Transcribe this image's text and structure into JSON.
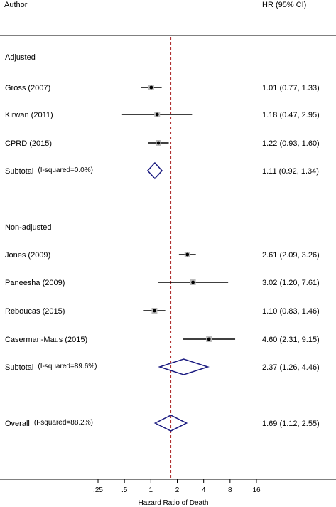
{
  "chart_data": {
    "type": "forest",
    "header_left": "Author",
    "header_right": "HR (95% CI)",
    "xlabel": "Hazard Ratio of Death",
    "x_scale": "log",
    "xlim": [
      0.25,
      16
    ],
    "ticks": [
      {
        "value": 0.25,
        "label": ".25"
      },
      {
        "value": 0.5,
        "label": ".5"
      },
      {
        "value": 1,
        "label": "1"
      },
      {
        "value": 2,
        "label": "2"
      },
      {
        "value": 4,
        "label": "4"
      },
      {
        "value": 8,
        "label": "8"
      },
      {
        "value": 16,
        "label": "16"
      }
    ],
    "reference_line": 1.69,
    "rows": [
      {
        "kind": "group",
        "label": "Adjusted"
      },
      {
        "kind": "study",
        "label": "Gross (2007)",
        "hr": 1.01,
        "lo": 0.77,
        "hi": 1.33,
        "text": "1.01 (0.77, 1.33)"
      },
      {
        "kind": "study",
        "label": "Kirwan (2011)",
        "hr": 1.18,
        "lo": 0.47,
        "hi": 2.95,
        "text": "1.18 (0.47, 2.95)"
      },
      {
        "kind": "study",
        "label": "CPRD (2015)",
        "hr": 1.22,
        "lo": 0.93,
        "hi": 1.6,
        "text": "1.22 (0.93, 1.60)"
      },
      {
        "kind": "subtotal",
        "label": "Subtotal",
        "note": "(I-squared=0.0%)",
        "hr": 1.11,
        "lo": 0.92,
        "hi": 1.34,
        "text": "1.11 (0.92, 1.34)"
      },
      {
        "kind": "group",
        "label": "Non-adjusted"
      },
      {
        "kind": "study",
        "label": "Jones (2009)",
        "hr": 2.61,
        "lo": 2.09,
        "hi": 3.26,
        "text": "2.61 (2.09, 3.26)"
      },
      {
        "kind": "study",
        "label": "Paneesha (2009)",
        "hr": 3.02,
        "lo": 1.2,
        "hi": 7.61,
        "text": "3.02 (1.20, 7.61)"
      },
      {
        "kind": "study",
        "label": "Reboucas (2015)",
        "hr": 1.1,
        "lo": 0.83,
        "hi": 1.46,
        "text": "1.10 (0.83, 1.46)"
      },
      {
        "kind": "study",
        "label": "Caserman-Maus (2015)",
        "hr": 4.6,
        "lo": 2.31,
        "hi": 9.15,
        "text": "4.60 (2.31, 9.15)"
      },
      {
        "kind": "subtotal",
        "label": "Subtotal",
        "note": "(I-squared=89.6%)",
        "hr": 2.37,
        "lo": 1.26,
        "hi": 4.46,
        "text": "2.37 (1.26, 4.46)"
      },
      {
        "kind": "overall",
        "label": "Overall",
        "note": "(I-squared=88.2%)",
        "hr": 1.69,
        "lo": 1.12,
        "hi": 2.55,
        "text": "1.69 (1.12, 2.55)"
      }
    ],
    "colors": {
      "diamond": "#1a1a80",
      "ref_line": "#b03030",
      "box": "#bdbdbd"
    }
  }
}
